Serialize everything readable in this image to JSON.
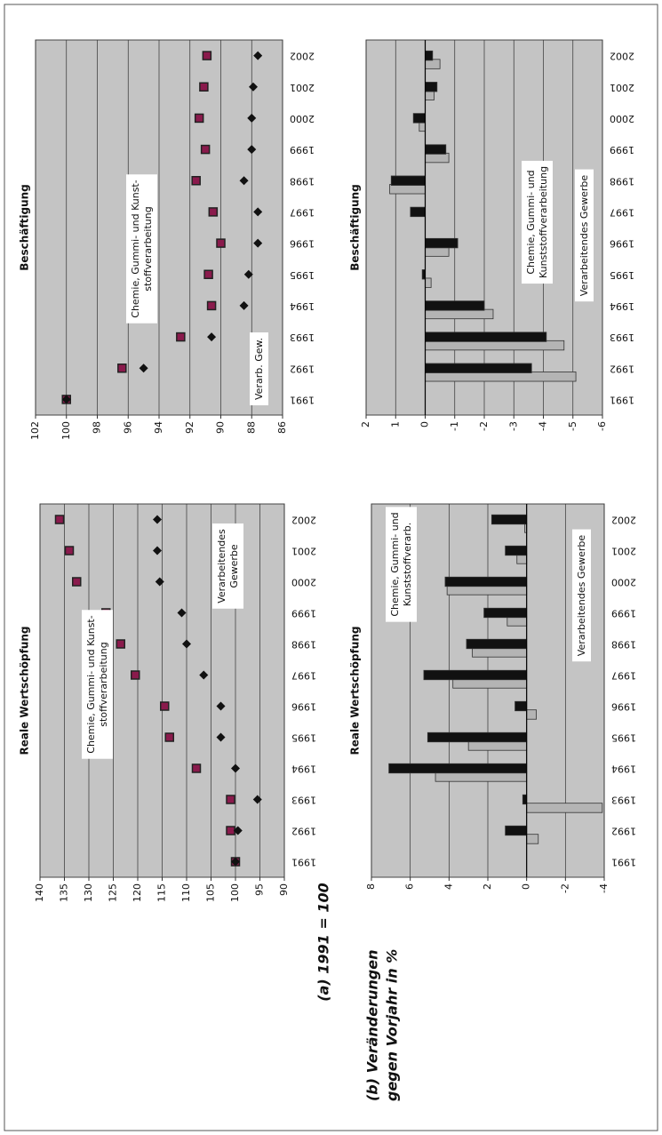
{
  "panel_labels": {
    "a": "(a) 1991 = 100",
    "b": [
      "(b) Veränderungen",
      "gegen Vorjahr in %"
    ]
  },
  "chart_data": [
    {
      "type": "scatter",
      "title": "Reale Wertschöpfung",
      "categories": [
        "1991",
        "1992",
        "1993",
        "1994",
        "1995",
        "1996",
        "1997",
        "1998",
        "1999",
        "2000",
        "2001",
        "2002"
      ],
      "series": [
        {
          "color": "#8a1a4c",
          "marker": "square",
          "values": [
            100,
            101,
            101,
            108,
            113.5,
            114.5,
            120.5,
            123.5,
            126.5,
            132.5,
            134,
            136
          ]
        },
        {
          "color": "#111111",
          "marker": "diamond",
          "values": [
            100,
            99.5,
            95.5,
            100,
            103,
            103,
            106.5,
            110,
            111,
            115.5,
            116,
            116
          ]
        }
      ],
      "ylim": [
        90,
        140
      ],
      "yticks": [
        90,
        95,
        100,
        105,
        110,
        115,
        120,
        125,
        130,
        135,
        140
      ],
      "grid": true,
      "annotations": [
        [
          "Chemie, Gummi- und Kunst-",
          "stoffverarbeitung"
        ],
        [
          "Verarbeitendes",
          "Gewerbe"
        ]
      ]
    },
    {
      "type": "scatter",
      "title": "Beschäftigung",
      "categories": [
        "1991",
        "1992",
        "1993",
        "1994",
        "1995",
        "1996",
        "1997",
        "1998",
        "1999",
        "2000",
        "2001",
        "2002"
      ],
      "series": [
        {
          "color": "#8a1a4c",
          "marker": "square",
          "values": [
            100,
            96.4,
            92.6,
            90.6,
            90.8,
            90,
            90.5,
            91.6,
            91,
            91.4,
            91.1,
            90.9
          ]
        },
        {
          "color": "#111111",
          "marker": "diamond",
          "values": [
            100,
            95,
            90.6,
            88.5,
            88.2,
            87.6,
            87.6,
            88.5,
            88,
            88,
            87.9,
            87.6
          ]
        }
      ],
      "ylim": [
        86,
        102
      ],
      "yticks": [
        86,
        88,
        90,
        92,
        94,
        96,
        98,
        100,
        102
      ],
      "grid": true,
      "annotations": [
        [
          "Chemie, Gummi- und Kunst-",
          "stoffverarbeitung"
        ],
        [
          "Verarb. Gew."
        ]
      ]
    },
    {
      "type": "bar",
      "title": "Reale Wertschöpfung",
      "categories": [
        "1991",
        "1992",
        "1993",
        "1994",
        "1995",
        "1996",
        "1997",
        "1998",
        "1999",
        "2000",
        "2001",
        "2002"
      ],
      "series": [
        {
          "color": "#b4b4b4",
          "values": [
            0,
            -0.6,
            -3.9,
            4.7,
            3,
            -0.5,
            3.8,
            2.8,
            1,
            4.1,
            0.5,
            0.1
          ]
        },
        {
          "color": "#111111",
          "values": [
            0,
            1.1,
            0.2,
            7.1,
            5.1,
            0.6,
            5.3,
            3.1,
            2.2,
            4.2,
            1.1,
            1.8
          ]
        }
      ],
      "ylim": [
        -4,
        8
      ],
      "yticks": [
        -4,
        -2,
        0,
        2,
        4,
        6,
        8
      ],
      "grid": true,
      "annotations": [
        [
          "Chemie, Gummi- und",
          "Kunststoffverarb."
        ],
        [
          "Verarbeitendes  Gewerbe"
        ]
      ]
    },
    {
      "type": "bar",
      "title": "Beschäftigung",
      "categories": [
        "1991",
        "1992",
        "1993",
        "1994",
        "1995",
        "1996",
        "1997",
        "1998",
        "1999",
        "2000",
        "2001",
        "2002"
      ],
      "series": [
        {
          "color": "#b4b4b4",
          "values": [
            0,
            -5.1,
            -4.7,
            -2.3,
            -0.2,
            -0.8,
            0,
            1.2,
            -0.8,
            0.2,
            -0.3,
            -0.5
          ]
        },
        {
          "color": "#111111",
          "values": [
            0,
            -3.6,
            -4.1,
            -2,
            0.1,
            -1.1,
            0.5,
            1.15,
            -0.7,
            0.4,
            -0.4,
            -0.25
          ]
        }
      ],
      "ylim": [
        -6,
        2
      ],
      "yticks": [
        -6,
        -5,
        -4,
        -3,
        -2,
        -1,
        0,
        1,
        2
      ],
      "grid": true,
      "annotations": [
        [
          "Chemie, Gummi- und",
          "Kunststoffverarbeitung"
        ],
        [
          "Verarbeitendes Gewerbe"
        ]
      ]
    }
  ]
}
